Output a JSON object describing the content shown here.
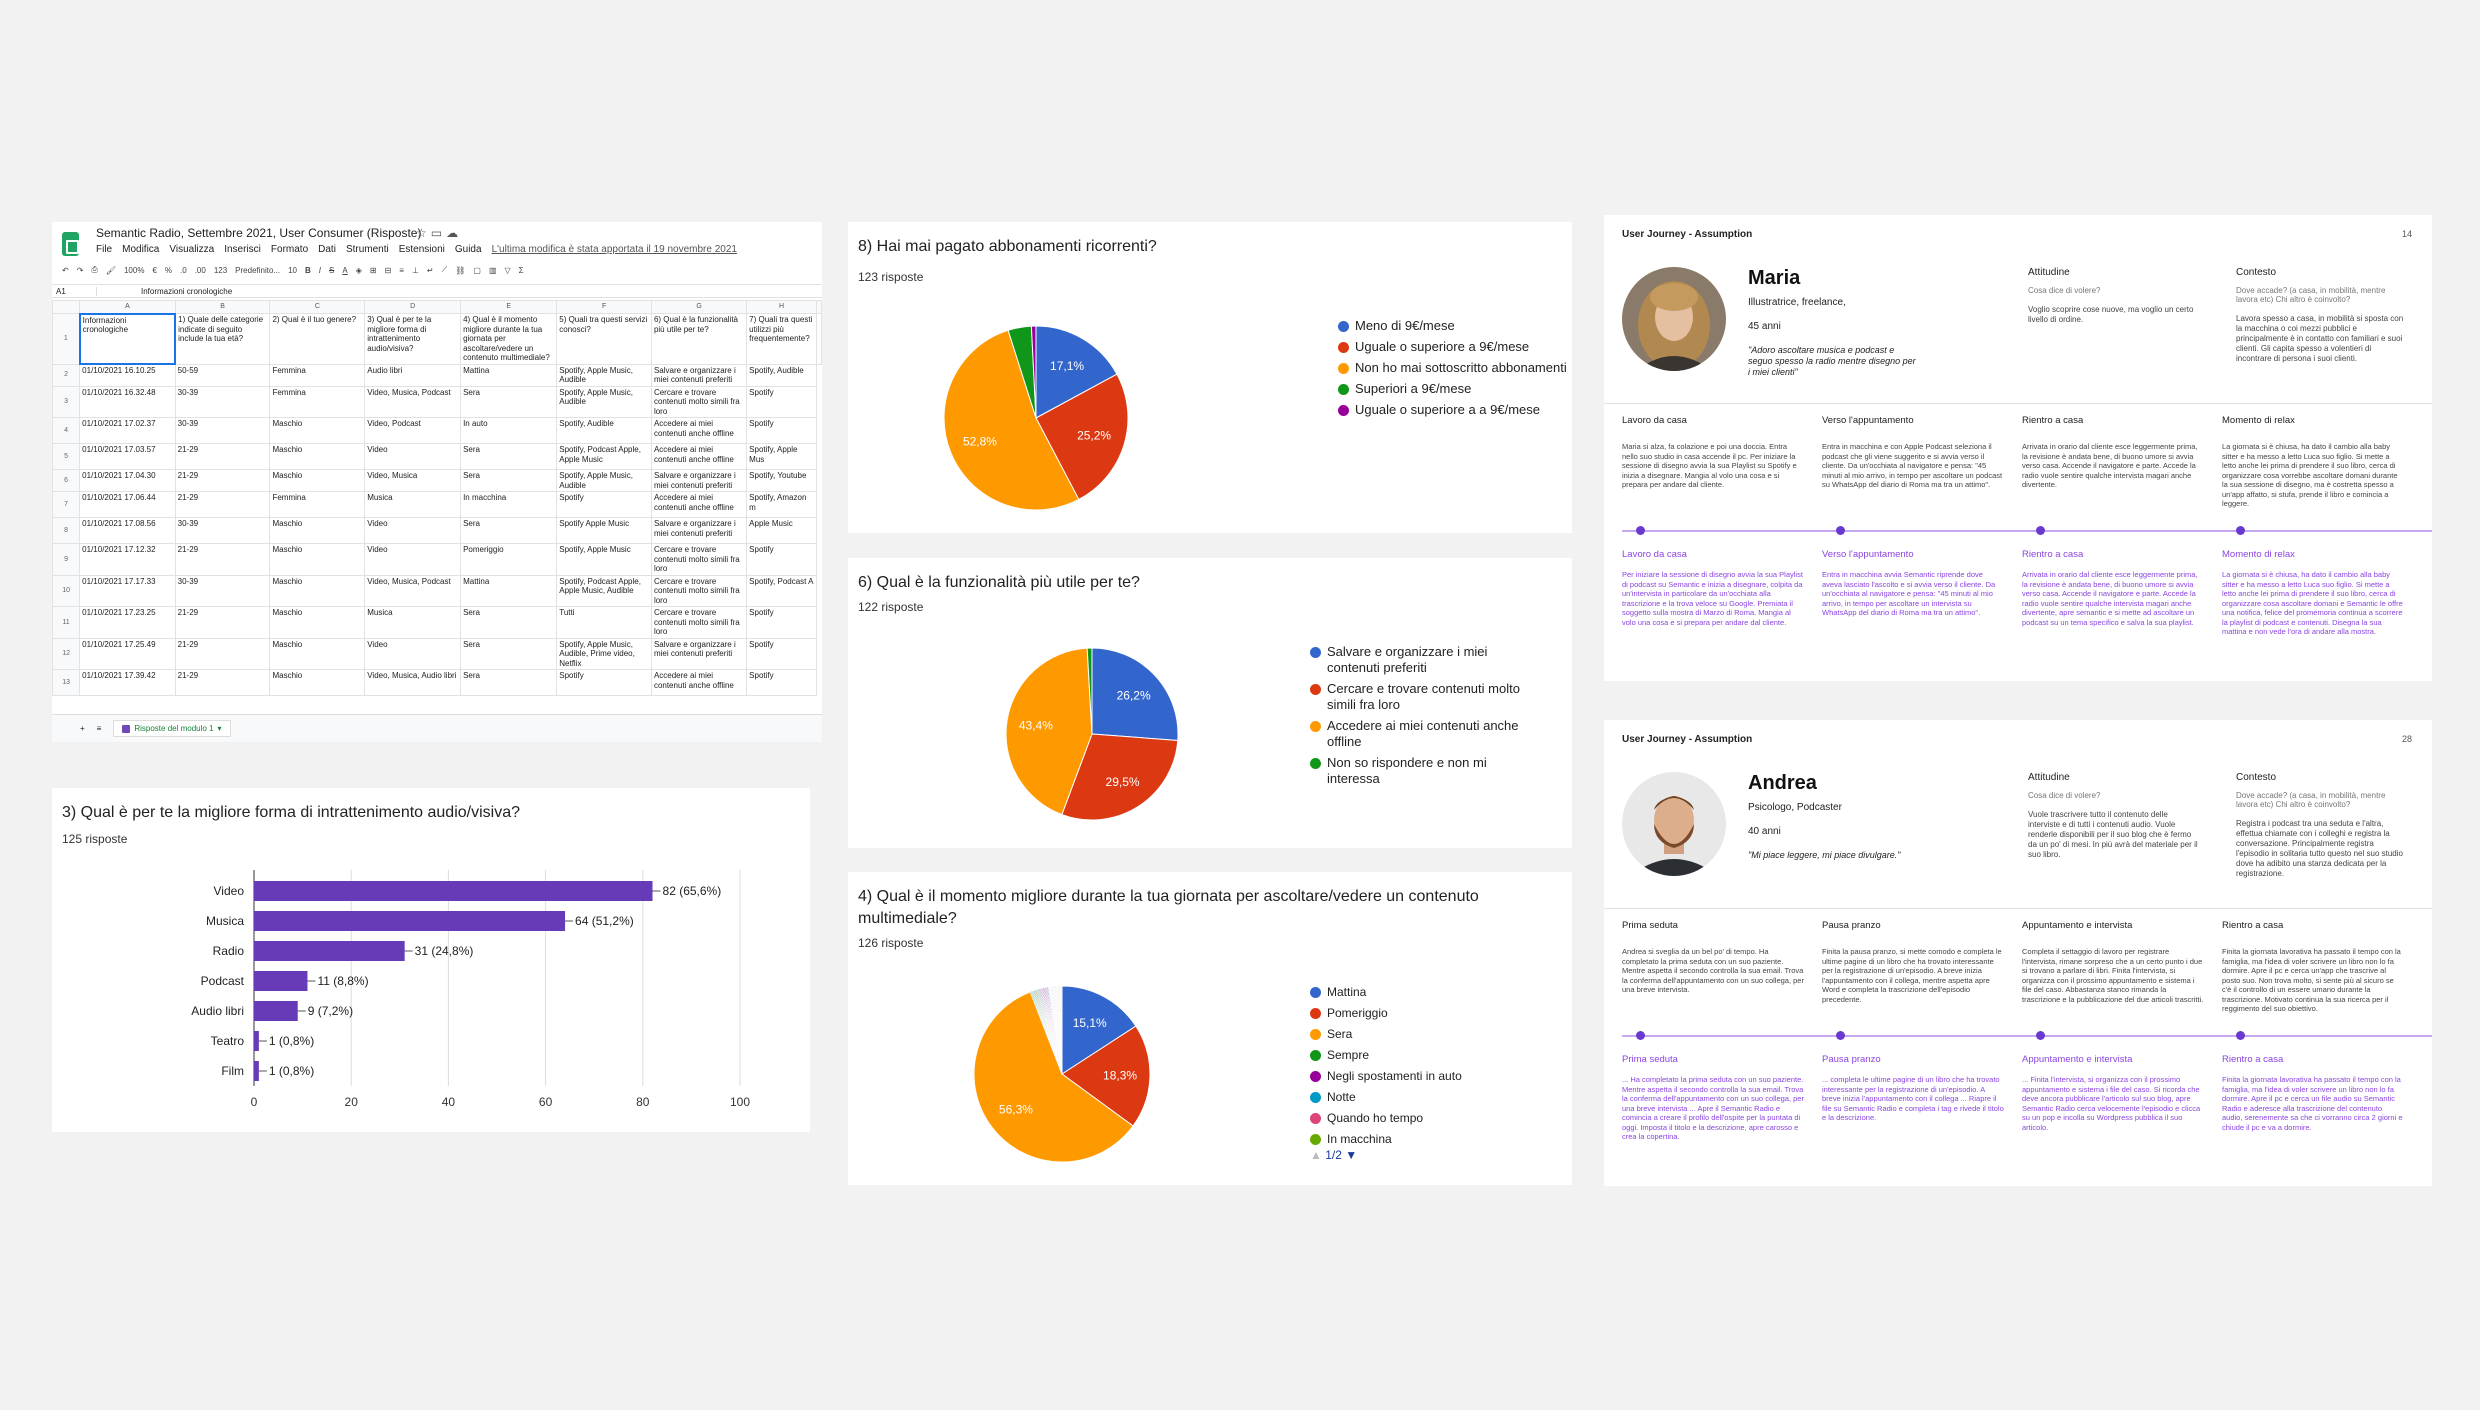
{
  "sheet": {
    "title": "Semantic Radio, Settembre 2021, User Consumer (Risposte)",
    "menu": [
      "File",
      "Modifica",
      "Visualizza",
      "Inserisci",
      "Formato",
      "Dati",
      "Strumenti",
      "Estensioni",
      "Guida"
    ],
    "last_edit": "L'ultima modifica è stata apportata il 19 novembre 2021",
    "toolbar": {
      "zoom": "100%",
      "currency": "€",
      "percent": "%",
      "dec1": ".0",
      "dec2": ".00",
      "num": "123",
      "font": "Predefinito...",
      "size": "10"
    },
    "cell_ref": "A1",
    "formula": "Informazioni cronologiche",
    "columns": [
      "A",
      "B",
      "C",
      "D",
      "E",
      "F",
      "G",
      "H"
    ],
    "headers": [
      "Informazioni cronologiche",
      "1) Quale delle categorie indicate di seguito include la tua età?",
      "2) Qual è il tuo genere?",
      "3) Qual è per te la migliore forma di intrattenimento audio/visiva?",
      "4) Qual è il momento migliore durante la tua giornata per ascoltare/vedere un contenuto multimediale?",
      "5) Quali tra questi servizi conosci?",
      "6) Qual è la funzionalità più utile per te?",
      "7) Quali tra questi utilizzi più frequentemente?"
    ],
    "rows": [
      [
        "2",
        "01/10/2021 16.10.25",
        "50-59",
        "Femmina",
        "Audio libri",
        "Mattina",
        "Spotify, Apple Music, Audible",
        "Salvare e organizzare i miei contenuti preferiti",
        "Spotify, Audible"
      ],
      [
        "3",
        "01/10/2021 16.32.48",
        "30-39",
        "Femmina",
        "Video, Musica, Podcast",
        "Sera",
        "Spotify, Apple Music, Audible",
        "Cercare e trovare contenuti molto simili fra loro",
        "Spotify"
      ],
      [
        "4",
        "01/10/2021 17.02.37",
        "30-39",
        "Maschio",
        "Video, Podcast",
        "In auto",
        "Spotify, Audible",
        "Accedere ai miei contenuti anche offline",
        "Spotify"
      ],
      [
        "5",
        "01/10/2021 17.03.57",
        "21-29",
        "Maschio",
        "Video",
        "Sera",
        "Spotify, Podcast Apple, Apple Music",
        "Accedere ai miei contenuti anche offline",
        "Spotify, Apple Mus"
      ],
      [
        "6",
        "01/10/2021 17.04.30",
        "21-29",
        "Maschio",
        "Video, Musica",
        "Sera",
        "Spotify, Apple Music, Audible",
        "Salvare e organizzare i miei contenuti preferiti",
        "Spotify, Youtube"
      ],
      [
        "7",
        "01/10/2021 17.06.44",
        "21-29",
        "Femmina",
        "Musica",
        "In macchina",
        "Spotify",
        "Accedere ai miei contenuti anche offline",
        "Spotify, Amazon m"
      ],
      [
        "8",
        "01/10/2021 17.08.56",
        "30-39",
        "Maschio",
        "Video",
        "Sera",
        "Spotify Apple Music",
        "Salvare e organizzare i miei contenuti preferiti",
        "Apple Music"
      ],
      [
        "9",
        "01/10/2021 17.12.32",
        "21-29",
        "Maschio",
        "Video",
        "Pomeriggio",
        "Spotify, Apple Music",
        "Cercare e trovare contenuti molto simili fra loro",
        "Spotify"
      ],
      [
        "10",
        "01/10/2021 17.17.33",
        "30-39",
        "Maschio",
        "Video, Musica, Podcast",
        "Mattina",
        "Spotify, Podcast Apple, Apple Music, Audible",
        "Cercare e trovare contenuti molto simili fra loro",
        "Spotify, Podcast A"
      ],
      [
        "11",
        "01/10/2021 17.23.25",
        "21-29",
        "Maschio",
        "Musica",
        "Sera",
        "Tutti",
        "Cercare e trovare contenuti molto simili fra loro",
        "Spotify"
      ],
      [
        "12",
        "01/10/2021 17.25.49",
        "21-29",
        "Maschio",
        "Video",
        "Sera",
        "Spotify, Apple Music, Audible, Prime video, Netflix",
        "Salvare e organizzare i miei contenuti preferiti",
        "Spotify"
      ],
      [
        "13",
        "01/10/2021 17.39.42",
        "21-29",
        "Maschio",
        "Video, Musica, Audio libri",
        "Sera",
        "Spotify",
        "Accedere ai miei contenuti anche offline",
        "Spotify"
      ]
    ],
    "sheet_tab": "Risposte del modulo 1"
  },
  "q3": {
    "title": "3) Qual è per te la migliore forma di intrattenimento audio/visiva?",
    "responses": "125 risposte"
  },
  "q8": {
    "title": "8) Hai mai pagato abbonamenti ricorrenti?",
    "responses": "123 risposte"
  },
  "q6": {
    "title": "6) Qual è la funzionalità più utile per te?",
    "responses": "122 risposte"
  },
  "q4": {
    "title": "4) Qual è il momento migliore durante la tua giornata per ascoltare/vedere un contenuto multimediale?",
    "responses": "126 risposte",
    "pager": "1/2"
  },
  "chart_data": [
    {
      "type": "bar",
      "orientation": "horizontal",
      "categories": [
        "Video",
        "Musica",
        "Radio",
        "Podcast",
        "Audio libri",
        "Teatro",
        "Film"
      ],
      "values": [
        82,
        64,
        31,
        11,
        9,
        1,
        1
      ],
      "data_labels": [
        "82 (65,6%)",
        "64 (51,2%)",
        "31 (24,8%)",
        "11 (8,8%)",
        "9 (7,2%)",
        "1 (0,8%)",
        "1 (0,8%)"
      ],
      "xlim": [
        0,
        100
      ],
      "xticks": [
        "0",
        "20",
        "40",
        "60",
        "80",
        "100"
      ],
      "color": "#673ab7",
      "grid": true
    },
    {
      "type": "pie",
      "labels": [
        "Meno di 9€/mese",
        "Uguale o superiore a 9€/mese",
        "Non ho mai sottoscritto abbonamenti",
        "Superiori a 9€/mese",
        "Uguale o superiore a a 9€/mese"
      ],
      "values": [
        17.1,
        25.2,
        52.8,
        4.1,
        0.8
      ],
      "data_labels": [
        "17,1%",
        "25,2%",
        "52,8%",
        "",
        ""
      ],
      "colors": [
        "#3366cc",
        "#dc3912",
        "#ff9900",
        "#109618",
        "#990099"
      ],
      "legend": "right"
    },
    {
      "type": "pie",
      "labels": [
        "Salvare e organizzare i miei contenuti preferiti",
        "Cercare e trovare contenuti molto simili fra loro",
        "Accedere ai miei contenuti anche offline",
        "Non so rispondere e non mi interessa"
      ],
      "values": [
        26.2,
        29.5,
        43.4,
        0.9
      ],
      "data_labels": [
        "26,2%",
        "29,5%",
        "43,4%",
        ""
      ],
      "colors": [
        "#3366cc",
        "#dc3912",
        "#ff9900",
        "#109618"
      ],
      "legend": "right"
    },
    {
      "type": "pie",
      "labels": [
        "Mattina",
        "Pomeriggio",
        "Sera",
        "Sempre",
        "Negli spostamenti in auto",
        "Notte",
        "Quando ho tempo",
        "In macchina"
      ],
      "values": [
        15.1,
        18.3,
        56.3,
        1.6,
        1.6,
        0.8,
        0.8,
        0.8
      ],
      "data_labels": [
        "15,1%",
        "18,3%",
        "56,3%",
        "",
        "",
        "",
        "",
        ""
      ],
      "colors": [
        "#3366cc",
        "#dc3912",
        "#ff9900",
        "#109618",
        "#990099",
        "#0099c6",
        "#dd4477",
        "#66aa00"
      ],
      "extra_slice_colors": [
        "#b82e2e",
        "#316395",
        "#994499",
        "#22aa99",
        "#aaaa11",
        "#6633cc",
        "#e67300",
        "#8b0707",
        "#651067",
        "#329262",
        "#5574a6",
        "#3b3eac",
        "#b77322"
      ],
      "legend": "right"
    }
  ],
  "uj1": {
    "header": "User Journey - Assumption",
    "page": "14",
    "name": "Maria",
    "role": "Illustratrice, freelance,",
    "age": "45 anni",
    "quote": "\"Adoro ascoltare musica e podcast e seguo spesso la radio mentre disegno per i miei clienti\"",
    "att_title": "Attitudine",
    "att_q": "Cosa dice di volere?",
    "att_text": "Voglio scoprire cose nuove, ma voglio un certo livello di ordine.",
    "ctx_title": "Contesto",
    "ctx_q": "Dove accade? (a casa, in mobilità, mentre lavora etc) Chi altro è coinvolto?",
    "ctx_text": "Lavora spesso a casa, in mobilità si sposta con la macchina o coi mezzi pubblici e principalmente è in contatto con familiari e suoi clienti. Gli capita spesso a volentieri di incontrare di persona i suoi clienti.",
    "phases": [
      {
        "title": "Lavoro da casa",
        "text": "Maria si alza, fa colazione e poi una doccia. Entra nello suo studio in casa accende il pc. Per iniziare la sessione di disegno avvia la sua Playlist su Spotify e inizia a disegnare. Mangia al volo una cosa e si prepara per andare dal cliente."
      },
      {
        "title": "Verso l'appuntamento",
        "text": "Entra in macchina e con Apple Podcast seleziona il podcast che gli viene suggerito e si avvia verso il cliente. Da un'occhiata al navigatore e pensa: \"45 minuti al mio arrivo, in tempo per ascoltare un podcast su WhatsApp del diario di Roma ma tra un attimo\"."
      },
      {
        "title": "Rientro a casa",
        "text": "Arrivata in orario dal cliente esce leggermente prima, la revisione è andata bene, di buono umore si avvia verso casa. Accende il navigatore e parte. Accede la radio vuole sentire qualche intervista magari anche divertente."
      },
      {
        "title": "Momento di relax",
        "text": "La giornata si è chiusa, ha dato il cambio alla baby sitter e ha messo a letto Luca suo figlio. Si mette a letto anche lei prima di prendere il suo libro, cerca di organizzare cosa vorrebbe ascoltare domani durante la sua sessione di disegno, ma è costretta spesso a un'app affatto, si stufa, prende il libro e comincia a leggere."
      }
    ],
    "phases2": [
      {
        "title": "Lavoro da casa",
        "text": "Per iniziare la sessione di disegno avvia la sua Playlist di podcast su Semantic e inizia a disegnare, colpita da un'intervista in particolare da un'occhiata alla trascrizione e la trova veloce su Google. Premiata il soggetto sulla mostra di Marzo di Roma. Mangia al volo una cosa e si prepara per andare dal cliente."
      },
      {
        "title": "Verso l'appuntamento",
        "text": "Entra in macchina avvia Semantic riprende dove aveva lasciato l'ascolto e si avvia verso il cliente. Da un'occhiata al navigatore e pensa: \"45 minuti al mio arrivo, in tempo per ascoltare un intervista su WhatsApp del diario di Roma ma tra un attimo\"."
      },
      {
        "title": "Rientro a casa",
        "text": "Arrivata in orario dal cliente esce leggermente prima, la revisione è andata bene, di buono umore si avvia verso casa. Accende il navigatore e parte. Accede la radio vuole sentire qualche intervista magari anche divertente, apre semantic e si mette ad ascoltare un podcast su un tema specifico e salva la sua playlist."
      },
      {
        "title": "Momento di relax",
        "text": "La giornata si è chiusa, ha dato il cambio alla baby sitter e ha messo a letto Luca suo figlio. Si mette a letto anche lei prima di prendere il suo libro, cerca di organizzare cosa ascoltare domani e Semantic le offre una notifica, felice del promemoria continua a scorrere la playlist di podcast e contenuti. Disegna la sua mattina e non vede l'ora di andare alla mostra."
      }
    ]
  },
  "uj2": {
    "header": "User Journey - Assumption",
    "page": "28",
    "name": "Andrea",
    "role": "Psicologo, Podcaster",
    "age": "40 anni",
    "quote": "\"Mi piace leggere, mi piace divulgare.\"",
    "att_title": "Attitudine",
    "att_q": "Cosa dice di volere?",
    "att_text": "Vuole trascrivere tutto il contenuto delle interviste e di tutti i contenuti audio. Vuole renderle disponibili per il suo blog che è fermo da un po' di mesi. In più avrà del materiale per il suo libro.",
    "ctx_title": "Contesto",
    "ctx_q": "Dove accade? (a casa, in mobilità, mentre lavora etc) Chi altro è coinvolto?",
    "ctx_text": "Registra i podcast tra una seduta e l'altra, effettua chiamate con i colleghi e registra la conversazione. Principalmente registra l'episodio in solitaria tutto questo nel suo studio dove ha adibito una stanza dedicata per la registrazione.",
    "phases": [
      {
        "title": "Prima seduta",
        "text": "Andrea si sveglia da un bel po' di tempo. Ha completato la prima seduta con un suo paziente. Mentre aspetta il secondo controlla la sua email. Trova la conferma dell'appuntamento con un suo collega, per una breve intervista."
      },
      {
        "title": "Pausa pranzo",
        "text": "Finita la pausa pranzo, si mette comodo e completa le ultime pagine di un libro che ha trovato interessante per la registrazione di un'episodio. A breve inizia l'appuntamento con il collega, mentre aspetta apre Word e completa la trascrizione dell'episodio precedente."
      },
      {
        "title": "Appuntamento e intervista",
        "text": "Completa il settaggio di lavoro per registrare l'intervista, rimane sorpreso che a un certo punto i due si trovano a parlare di libri. Finita l'intervista, si organizza con il prossimo appuntamento e sistema i file del caso. Abbastanza stanco rimanda la trascrizione e la pubblicazione del due articoli trascritti."
      },
      {
        "title": "Rientro a casa",
        "text": "Finita la giornata lavorativa ha passato il tempo con la famiglia, ma l'idea di voler scrivere un libro non lo fa dormire. Apre il pc e cerca un'app che trascrive al posto suo. Non trova molto, si sente più al sicuro se c'è il controllo di un essere umano durante la trascrizione. Motivato continua la sua ricerca per il reggimento del suo obiettivo."
      }
    ],
    "phases2": [
      {
        "title": "Prima seduta",
        "text": "... Ha completato la prima seduta con un suo paziente. Mentre aspetta il secondo controlla la sua email. Trova la conferma dell'appuntamento con un suo collega, per una breve intervista ... Apre il Semantic Radio e comincia a creare il profilo dell'ospite per la puntata di oggi. Imposta il titolo e la descrizione, apre carosso e crea la copertina."
      },
      {
        "title": "Pausa pranzo",
        "text": "... completa le ultime pagine di un libro che ha trovato interessante per la registrazione di un'episodio. A breve inizia l'appuntamento con il collega ... Riapre il file su Semantic Radio e completa i tag e rivede il titolo e la descrizione."
      },
      {
        "title": "Appuntamento e intervista",
        "text": "... Finita l'intervista, si organizza con il prossimo appuntamento e sistema i file del caso. Si ricorda che deve ancora pubblicare l'articolo sul suo blog, apre Semantic Radio cerca velocemente l'episodio e clicca su un pop e incolla su Wordpress pubblica il suo articolo."
      },
      {
        "title": "Rientro a casa",
        "text": "Finita la giornata lavorativa ha passato il tempo con la famiglia, ma l'idea di voler scrivere un libro non lo fa dormire. Apre il pc e cerca un file audio su Semantic Radio e aderesce alla trascrizione del contenuto audio, serenemente sa che ci vorranno circa 2 giorni e chiude il pc e va a dormire."
      }
    ]
  }
}
